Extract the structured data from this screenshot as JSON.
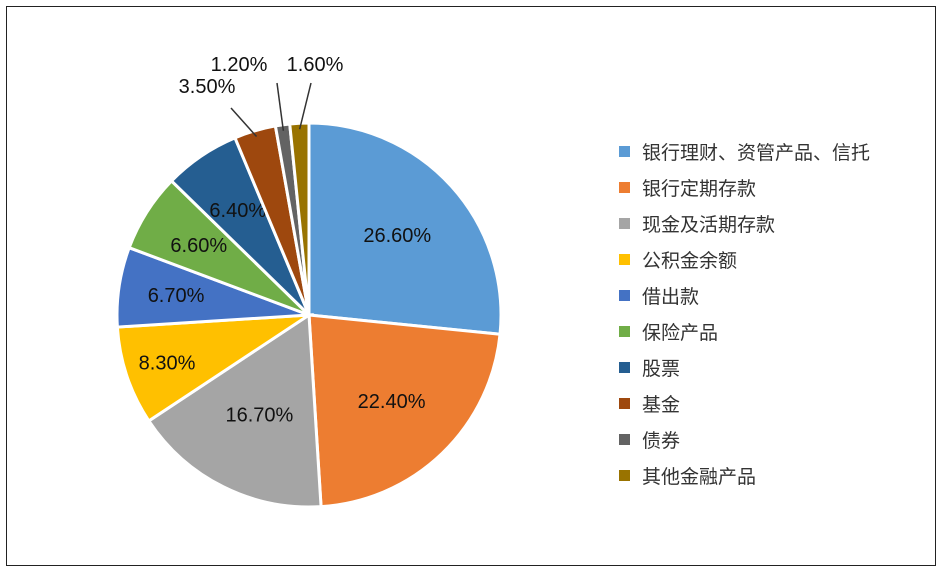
{
  "chart_data": {
    "type": "pie",
    "title": "",
    "legend_position": "right",
    "categories": [
      "银行理财、资管产品、信托",
      "银行定期存款",
      "现金及活期存款",
      "公积金余额",
      "借出款",
      "保险产品",
      "股票",
      "基金",
      "债券",
      "其他金融产品"
    ],
    "values": [
      26.6,
      22.4,
      16.7,
      8.3,
      6.7,
      6.6,
      6.4,
      3.5,
      1.2,
      1.6
    ],
    "value_labels": [
      "26.60%",
      "22.40%",
      "16.70%",
      "8.30%",
      "6.70%",
      "6.60%",
      "6.40%",
      "3.50%",
      "1.20%",
      "1.60%"
    ],
    "colors": [
      "#5B9BD5",
      "#ED7D31",
      "#A5A5A5",
      "#FFC000",
      "#4472C4",
      "#70AD47",
      "#255E91",
      "#9E480E",
      "#636363",
      "#997300"
    ]
  }
}
